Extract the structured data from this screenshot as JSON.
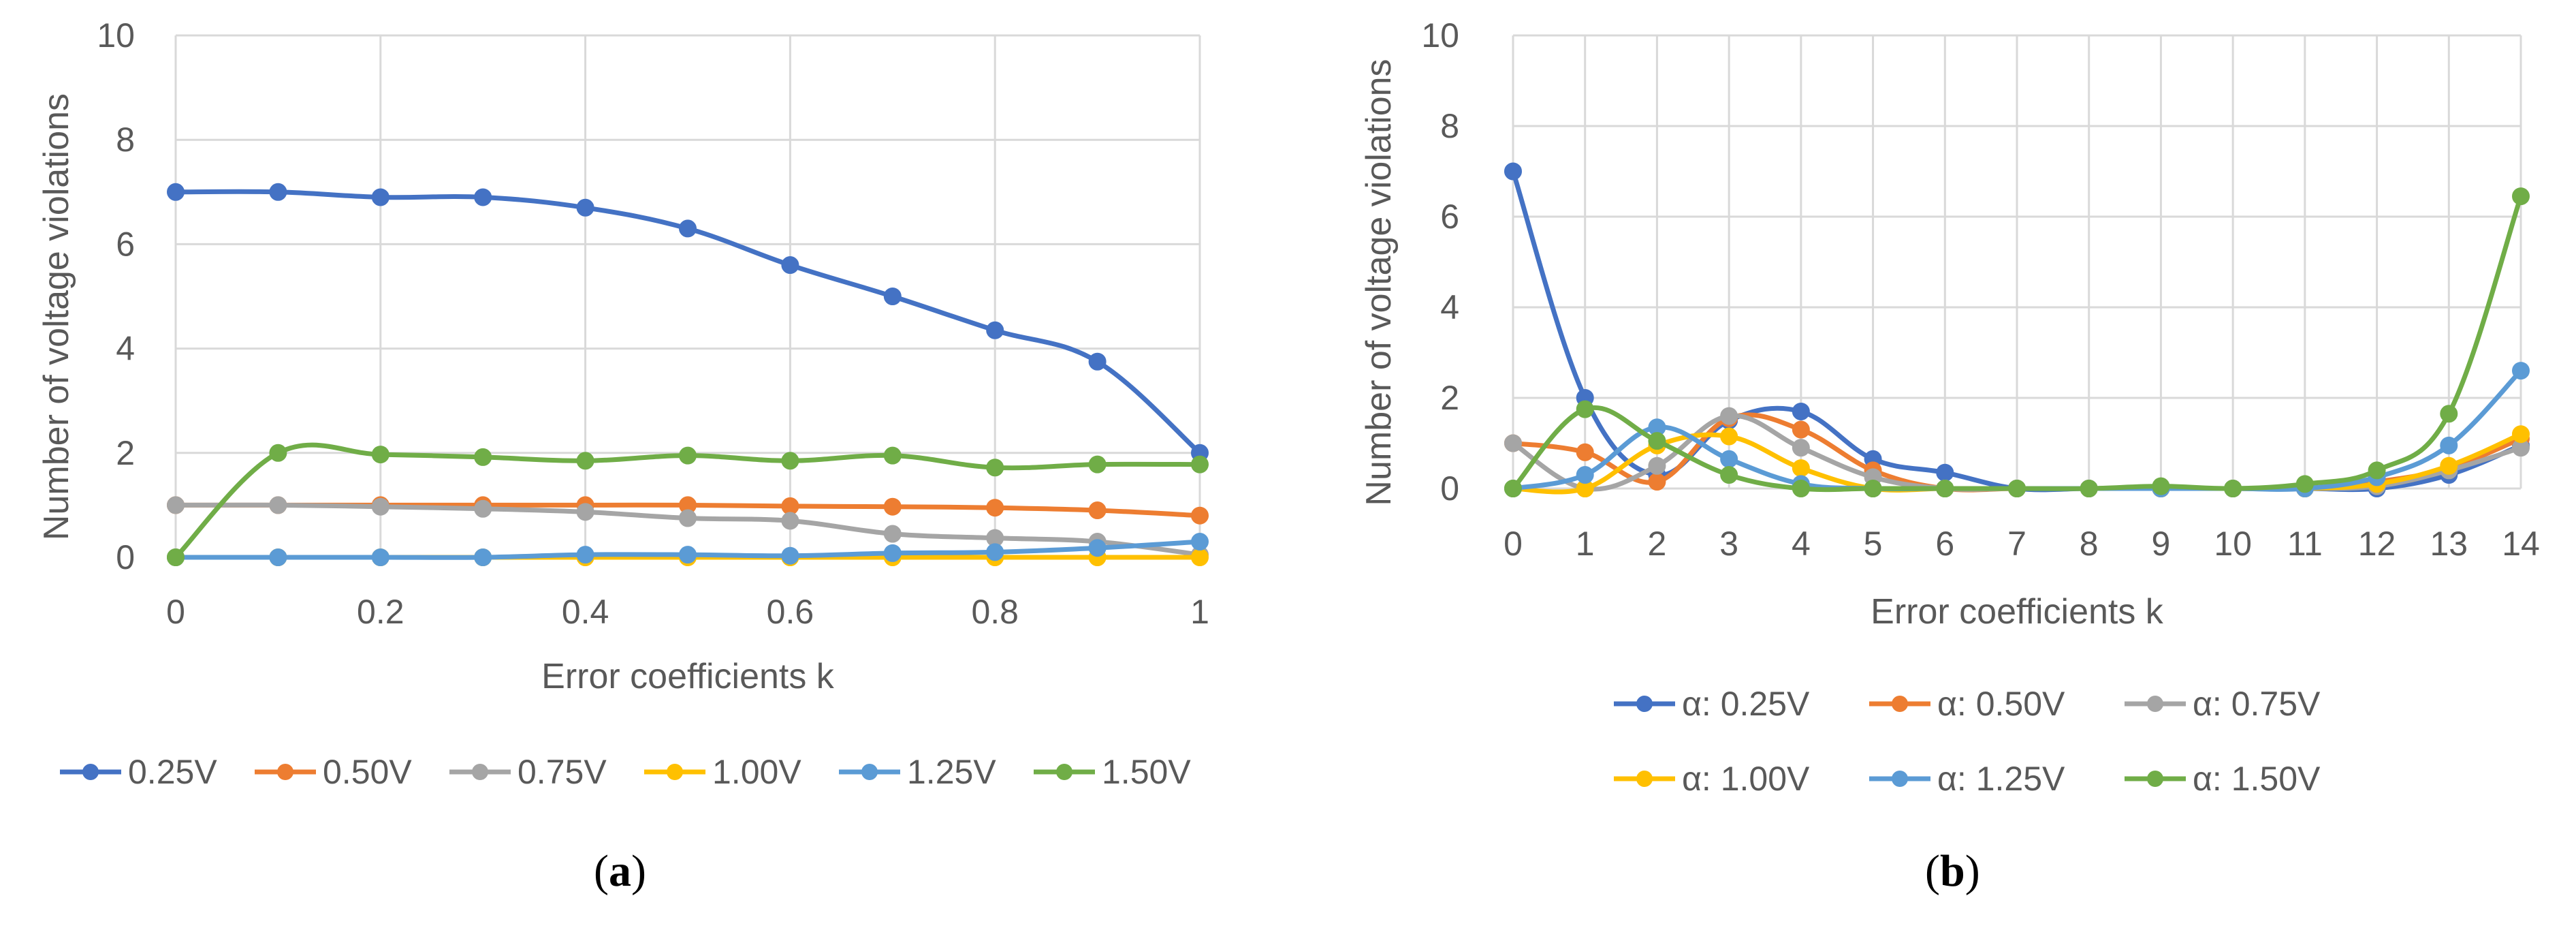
{
  "chart_data": [
    {
      "id": "a",
      "type": "line",
      "caption_letter": "a",
      "caption_open": "(",
      "caption_close": ")",
      "title": "",
      "xlabel": "Error coefficients k",
      "ylabel": "Number of voltage violations",
      "xlim": [
        0,
        1
      ],
      "ylim": [
        0,
        10
      ],
      "grid": true,
      "x_ticks": [
        "0",
        "0.2",
        "0.4",
        "0.6",
        "0.8",
        "1"
      ],
      "y_ticks": [
        "0",
        "2",
        "4",
        "6",
        "8",
        "10"
      ],
      "legend_position": "bottom",
      "x": [
        0,
        0.1,
        0.2,
        0.3,
        0.4,
        0.5,
        0.6,
        0.7,
        0.8,
        0.9,
        1
      ],
      "series": [
        {
          "name": "0.25V",
          "color": "#4472C4",
          "values": [
            7,
            7,
            6.9,
            6.9,
            6.7,
            6.3,
            5.6,
            5,
            4.35,
            3.75,
            2
          ]
        },
        {
          "name": "0.50V",
          "color": "#ED7D31",
          "values": [
            1,
            1,
            1,
            1,
            1,
            1,
            0.98,
            0.97,
            0.95,
            0.9,
            0.8
          ]
        },
        {
          "name": "0.75V",
          "color": "#A5A5A5",
          "values": [
            1,
            1,
            0.97,
            0.93,
            0.87,
            0.75,
            0.7,
            0.45,
            0.37,
            0.3,
            0.05
          ]
        },
        {
          "name": "1.00V",
          "color": "#FFC000",
          "values": [
            0,
            0,
            0,
            0,
            0,
            0,
            0,
            0,
            0,
            0,
            0
          ]
        },
        {
          "name": "1.25V",
          "color": "#5B9BD5",
          "values": [
            0,
            0,
            0,
            0,
            0.05,
            0.05,
            0.03,
            0.08,
            0.1,
            0.18,
            0.3
          ]
        },
        {
          "name": "1.50V",
          "color": "#70AD47",
          "values": [
            0,
            2,
            1.97,
            1.92,
            1.85,
            1.95,
            1.85,
            1.95,
            1.72,
            1.78,
            1.78
          ]
        }
      ]
    },
    {
      "id": "b",
      "type": "line",
      "caption_letter": "b",
      "caption_open": "(",
      "caption_close": ")",
      "title": "",
      "xlabel": "Error coefficients k",
      "ylabel": "Number of voltage violations",
      "xlim": [
        0,
        14
      ],
      "ylim": [
        0,
        10
      ],
      "grid": true,
      "x_ticks": [
        "0",
        "1",
        "2",
        "3",
        "4",
        "5",
        "6",
        "7",
        "8",
        "9",
        "10",
        "11",
        "12",
        "13",
        "14"
      ],
      "y_ticks": [
        "0",
        "2",
        "4",
        "6",
        "8",
        "10"
      ],
      "legend_position": "bottom",
      "x": [
        0,
        1,
        2,
        3,
        4,
        5,
        6,
        7,
        8,
        9,
        10,
        11,
        12,
        13,
        14
      ],
      "series": [
        {
          "name": "α: 0.25V",
          "color": "#4472C4",
          "values": [
            7,
            2,
            0.3,
            1.5,
            1.7,
            0.65,
            0.35,
            0,
            0,
            0,
            0,
            0,
            0,
            0.3,
            0.95
          ]
        },
        {
          "name": "α: 0.50V",
          "color": "#ED7D31",
          "values": [
            1,
            0.8,
            0.15,
            1.55,
            1.3,
            0.4,
            0,
            0,
            0,
            0,
            0,
            0,
            0.15,
            0.45,
            1.1
          ]
        },
        {
          "name": "α: 0.75V",
          "color": "#A5A5A5",
          "values": [
            1,
            0,
            0.5,
            1.6,
            0.9,
            0.25,
            0,
            0,
            0,
            0,
            0,
            0,
            0.05,
            0.4,
            0.9
          ]
        },
        {
          "name": "α: 1.00V",
          "color": "#FFC000",
          "values": [
            0,
            0,
            0.95,
            1.15,
            0.45,
            0,
            0,
            0,
            0,
            0,
            0,
            0,
            0.1,
            0.5,
            1.2
          ]
        },
        {
          "name": "α: 1.25V",
          "color": "#5B9BD5",
          "values": [
            0,
            0.3,
            1.35,
            0.65,
            0.1,
            0,
            0,
            0,
            0,
            0,
            0,
            0,
            0.25,
            0.95,
            2.6
          ]
        },
        {
          "name": "α: 1.50V",
          "color": "#70AD47",
          "values": [
            0,
            1.75,
            1.05,
            0.3,
            0,
            0,
            0,
            0,
            0,
            0.05,
            0,
            0.1,
            0.4,
            1.65,
            6.45
          ]
        }
      ]
    }
  ]
}
